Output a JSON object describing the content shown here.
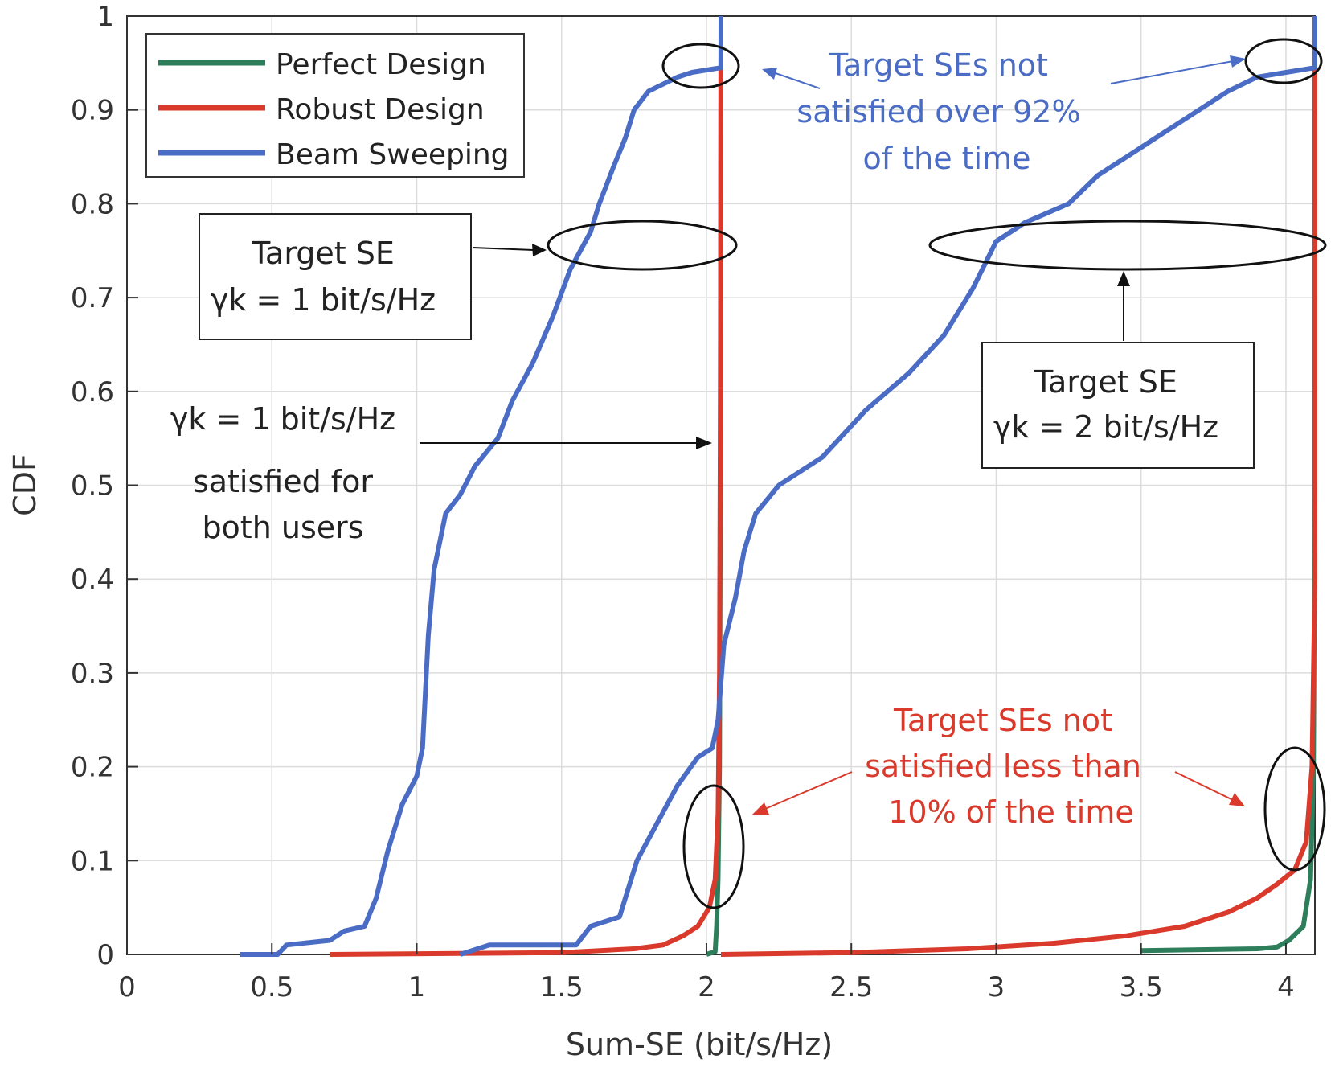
{
  "chart_data": {
    "type": "line",
    "xlabel": "Sum-SE (bit/s/Hz)",
    "ylabel": "CDF",
    "xlim": [
      0,
      4.1
    ],
    "ylim": [
      0,
      1
    ],
    "grid": true,
    "x_ticks": [
      0,
      0.5,
      1,
      1.5,
      2,
      2.5,
      3,
      3.5,
      4
    ],
    "x_tick_labels": [
      "0",
      "0.5",
      "1",
      "1.5",
      "2",
      "2.5",
      "3",
      "3.5",
      "4"
    ],
    "y_ticks": [
      0,
      0.1,
      0.2,
      0.3,
      0.4,
      0.5,
      0.6,
      0.7,
      0.8,
      0.9,
      1
    ],
    "y_tick_labels": [
      "0",
      "0.1",
      "0.2",
      "0.3",
      "0.4",
      "0.5",
      "0.6",
      "0.7",
      "0.8",
      "0.9",
      "1"
    ],
    "legend_position": "top-left",
    "series": [
      {
        "name": "Perfect Design",
        "color": "#2e7d5b",
        "segments": [
          [
            [
              2.0,
              0.0
            ],
            [
              2.03,
              0.003
            ],
            [
              2.035,
              0.03
            ],
            [
              2.04,
              0.08
            ],
            [
              2.045,
              0.2
            ],
            [
              2.048,
              0.5
            ],
            [
              2.05,
              1.0
            ]
          ],
          [
            [
              3.5,
              0.004
            ],
            [
              3.9,
              0.006
            ],
            [
              3.97,
              0.008
            ],
            [
              4.01,
              0.015
            ],
            [
              4.06,
              0.03
            ],
            [
              4.085,
              0.08
            ],
            [
              4.095,
              0.2
            ],
            [
              4.1,
              0.5
            ],
            [
              4.1,
              1.0
            ]
          ]
        ]
      },
      {
        "name": "Robust Design",
        "color": "#d93a2b",
        "segments": [
          [
            [
              0.7,
              0.0
            ],
            [
              1.5,
              0.002
            ],
            [
              1.75,
              0.006
            ],
            [
              1.85,
              0.01
            ],
            [
              1.92,
              0.02
            ],
            [
              1.97,
              0.03
            ],
            [
              2.01,
              0.05
            ],
            [
              2.03,
              0.08
            ],
            [
              2.04,
              0.15
            ],
            [
              2.045,
              0.3
            ],
            [
              2.048,
              0.6
            ],
            [
              2.05,
              1.0
            ]
          ],
          [
            [
              2.05,
              0.0
            ],
            [
              2.5,
              0.002
            ],
            [
              2.9,
              0.006
            ],
            [
              3.2,
              0.012
            ],
            [
              3.45,
              0.02
            ],
            [
              3.65,
              0.03
            ],
            [
              3.8,
              0.045
            ],
            [
              3.9,
              0.06
            ],
            [
              3.97,
              0.075
            ],
            [
              4.03,
              0.09
            ],
            [
              4.07,
              0.12
            ],
            [
              4.09,
              0.2
            ],
            [
              4.1,
              0.4
            ],
            [
              4.1,
              1.0
            ]
          ]
        ]
      },
      {
        "name": "Beam Sweeping",
        "color": "#4a6cc4",
        "segments": [
          [
            [
              0.39,
              0.0
            ],
            [
              0.52,
              0.0
            ],
            [
              0.55,
              0.01
            ],
            [
              0.7,
              0.015
            ],
            [
              0.75,
              0.025
            ],
            [
              0.82,
              0.03
            ],
            [
              0.86,
              0.06
            ],
            [
              0.9,
              0.11
            ],
            [
              0.95,
              0.16
            ],
            [
              1.0,
              0.19
            ],
            [
              1.02,
              0.22
            ],
            [
              1.04,
              0.34
            ],
            [
              1.06,
              0.41
            ],
            [
              1.1,
              0.47
            ],
            [
              1.15,
              0.49
            ],
            [
              1.2,
              0.52
            ],
            [
              1.28,
              0.55
            ],
            [
              1.33,
              0.59
            ],
            [
              1.4,
              0.63
            ],
            [
              1.47,
              0.68
            ],
            [
              1.53,
              0.73
            ],
            [
              1.6,
              0.77
            ],
            [
              1.63,
              0.8
            ],
            [
              1.68,
              0.84
            ],
            [
              1.72,
              0.87
            ],
            [
              1.75,
              0.9
            ],
            [
              1.8,
              0.92
            ],
            [
              1.9,
              0.935
            ],
            [
              1.95,
              0.94
            ],
            [
              2.05,
              0.945
            ],
            [
              2.05,
              1.0
            ]
          ],
          [
            [
              1.15,
              0.0
            ],
            [
              1.25,
              0.01
            ],
            [
              1.4,
              0.01
            ],
            [
              1.55,
              0.01
            ],
            [
              1.6,
              0.03
            ],
            [
              1.7,
              0.04
            ],
            [
              1.76,
              0.1
            ],
            [
              1.83,
              0.14
            ],
            [
              1.9,
              0.18
            ],
            [
              1.97,
              0.21
            ],
            [
              2.02,
              0.22
            ],
            [
              2.04,
              0.25
            ],
            [
              2.06,
              0.33
            ],
            [
              2.1,
              0.38
            ],
            [
              2.13,
              0.43
            ],
            [
              2.17,
              0.47
            ],
            [
              2.25,
              0.5
            ],
            [
              2.4,
              0.53
            ],
            [
              2.55,
              0.58
            ],
            [
              2.7,
              0.62
            ],
            [
              2.82,
              0.66
            ],
            [
              2.92,
              0.71
            ],
            [
              3.0,
              0.76
            ],
            [
              3.1,
              0.78
            ],
            [
              3.25,
              0.8
            ],
            [
              3.35,
              0.83
            ],
            [
              3.45,
              0.85
            ],
            [
              3.55,
              0.87
            ],
            [
              3.65,
              0.89
            ],
            [
              3.8,
              0.92
            ],
            [
              3.9,
              0.935
            ],
            [
              4.0,
              0.94
            ],
            [
              4.1,
              0.945
            ],
            [
              4.1,
              1.0
            ]
          ]
        ]
      }
    ],
    "annotations": [
      {
        "id": "target-se-1",
        "lines": [
          "Target SE",
          "γk = 1 bit/s/Hz"
        ]
      },
      {
        "id": "target-se-2",
        "lines": [
          "Target SE",
          "γk = 2 bit/s/Hz"
        ]
      },
      {
        "id": "satisfied-note",
        "lines": [
          "γk = 1 bit/s/Hz",
          "satisfied for",
          "both users"
        ]
      },
      {
        "id": "beam-note",
        "lines": [
          "Target SEs not",
          "satisfied over 92%",
          "of the time"
        ],
        "color": "#4a6cc4"
      },
      {
        "id": "robust-note",
        "lines": [
          "Target SEs not",
          "satisfied less than",
          "10% of the time"
        ],
        "color": "#d93a2b"
      }
    ]
  }
}
